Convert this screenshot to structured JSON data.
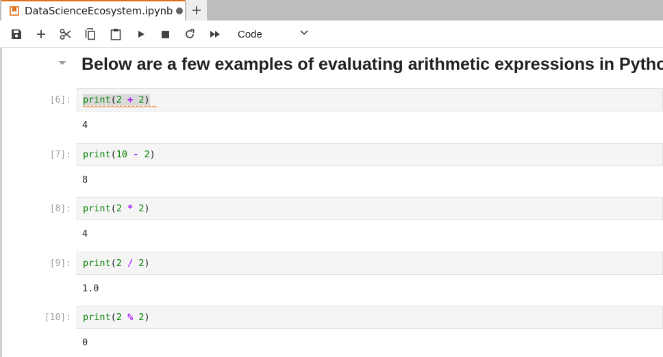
{
  "tab": {
    "title": "DataScienceEcosystem.ipynb",
    "accent_color": "#e0701b",
    "icon": "notebook-icon",
    "modified_indicator": "dot",
    "add_tab_icon": "plus-icon"
  },
  "toolbar": {
    "buttons": [
      {
        "icon": "save-icon"
      },
      {
        "icon": "plus-icon"
      },
      {
        "icon": "cut-icon"
      },
      {
        "icon": "copy-icon"
      },
      {
        "icon": "paste-icon"
      },
      {
        "icon": "run-icon"
      },
      {
        "icon": "stop-icon"
      },
      {
        "icon": "restart-icon"
      },
      {
        "icon": "fast-forward-icon"
      }
    ],
    "cell_type": "Code",
    "cell_type_icon": "chevron-down-icon"
  },
  "notebook": {
    "heading": "Below are a few examples of evaluating arithmetic expressions in Python:",
    "cells": [
      {
        "prompt": "[6]:",
        "fn": "print",
        "a": "2",
        "op": "+",
        "b": "2",
        "output": "4"
      },
      {
        "prompt": "[7]:",
        "fn": "print",
        "a": "10",
        "op": "-",
        "b": "2",
        "output": "8"
      },
      {
        "prompt": "[8]:",
        "fn": "print",
        "a": "2",
        "op": "*",
        "b": "2",
        "output": "4"
      },
      {
        "prompt": "[9]:",
        "fn": "print",
        "a": "2",
        "op": "/",
        "b": "2",
        "output": "1.0"
      },
      {
        "prompt": "[10]:",
        "fn": "print",
        "a": "2",
        "op": "%",
        "b": "2",
        "output": "0"
      }
    ]
  }
}
